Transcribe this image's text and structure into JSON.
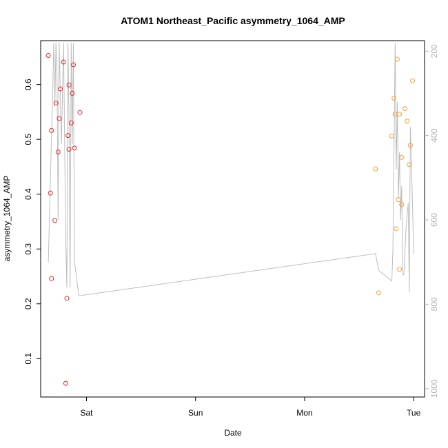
{
  "chart_data": {
    "type": "scatter",
    "title": "ATOM1 Northeast_Pacific asymmetry_1064_AMP",
    "xlabel": "Date",
    "ylabel": "asymmetry_1064_AMP",
    "x_ticks": [
      {
        "label": "Sat",
        "x": 1.0
      },
      {
        "label": "Sun",
        "x": 2.0
      },
      {
        "label": "Mon",
        "x": 3.0
      },
      {
        "label": "Tue",
        "x": 4.0
      }
    ],
    "xlim": [
      0.58,
      4.1
    ],
    "ylim": [
      0.03,
      0.68
    ],
    "y_ticks": [
      0.1,
      0.2,
      0.3,
      0.4,
      0.5,
      0.6
    ],
    "y2_ticks": [
      200,
      400,
      600,
      800,
      1000
    ],
    "y2lim": [
      1020,
      175
    ],
    "grid": false,
    "colors": {
      "series_red": "#e8262a",
      "series_orange": "#f5a033",
      "line": "#bdbdbd",
      "right_axis": "#b0b0b0"
    },
    "series": [
      {
        "color": "red",
        "points": [
          [
            0.65,
            0.653
          ],
          [
            0.67,
            0.402
          ],
          [
            0.68,
            0.516
          ],
          [
            0.68,
            0.246
          ],
          [
            0.71,
            0.352
          ],
          [
            0.72,
            0.566
          ],
          [
            0.74,
            0.477
          ],
          [
            0.75,
            0.538
          ],
          [
            0.76,
            0.592
          ],
          [
            0.79,
            0.641
          ],
          [
            0.81,
            0.055
          ],
          [
            0.82,
            0.21
          ],
          [
            0.83,
            0.507
          ],
          [
            0.84,
            0.599
          ],
          [
            0.84,
            0.482
          ],
          [
            0.86,
            0.53
          ],
          [
            0.87,
            0.584
          ],
          [
            0.88,
            0.636
          ],
          [
            0.89,
            0.484
          ],
          [
            0.94,
            0.549
          ]
        ]
      },
      {
        "color": "orange",
        "points": [
          [
            3.65,
            0.446
          ],
          [
            3.68,
            0.22
          ],
          [
            3.8,
            0.506
          ],
          [
            3.82,
            0.575
          ],
          [
            3.83,
            0.546
          ],
          [
            3.84,
            0.337
          ],
          [
            3.85,
            0.646
          ],
          [
            3.86,
            0.39
          ],
          [
            3.87,
            0.263
          ],
          [
            3.87,
            0.546
          ],
          [
            3.89,
            0.381
          ],
          [
            3.89,
            0.467
          ],
          [
            3.92,
            0.556
          ],
          [
            3.94,
            0.533
          ],
          [
            3.96,
            0.454
          ],
          [
            3.97,
            0.489
          ],
          [
            3.99,
            0.607
          ]
        ]
      }
    ],
    "line_series": {
      "axis": "right",
      "points": [
        [
          0.65,
          700
        ],
        [
          0.67,
          500
        ],
        [
          0.69,
          300
        ],
        [
          0.7,
          180
        ],
        [
          0.71,
          330
        ],
        [
          0.72,
          180
        ],
        [
          0.73,
          250
        ],
        [
          0.74,
          600
        ],
        [
          0.75,
          180
        ],
        [
          0.77,
          420
        ],
        [
          0.79,
          180
        ],
        [
          0.81,
          650
        ],
        [
          0.82,
          760
        ],
        [
          0.83,
          180
        ],
        [
          0.84,
          350
        ],
        [
          0.85,
          760
        ],
        [
          0.86,
          180
        ],
        [
          0.87,
          420
        ],
        [
          0.88,
          180
        ],
        [
          0.89,
          700
        ],
        [
          0.93,
          780
        ],
        [
          3.65,
          680
        ],
        [
          3.68,
          720
        ],
        [
          3.8,
          745
        ],
        [
          3.81,
          670
        ],
        [
          3.83,
          180
        ],
        [
          3.84,
          480
        ],
        [
          3.85,
          320
        ],
        [
          3.86,
          550
        ],
        [
          3.87,
          440
        ],
        [
          3.88,
          600
        ],
        [
          3.89,
          520
        ],
        [
          3.9,
          730
        ],
        [
          3.91,
          730
        ],
        [
          3.93,
          620
        ],
        [
          3.95,
          560
        ],
        [
          3.96,
          770
        ],
        [
          3.97,
          380
        ],
        [
          3.98,
          460
        ],
        [
          4.0,
          680
        ]
      ]
    }
  }
}
